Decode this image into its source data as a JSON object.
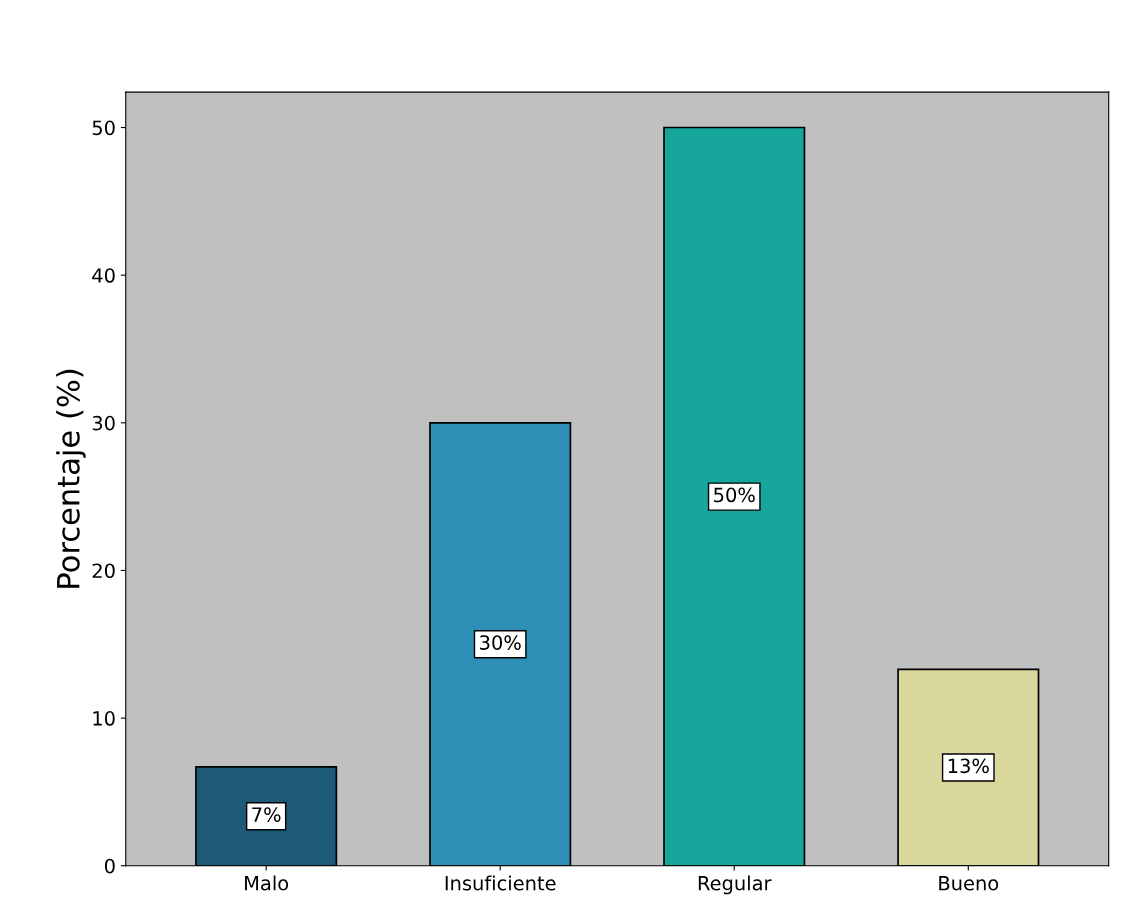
{
  "chart_data": {
    "type": "bar",
    "ylabel": "Porcentaje (%)",
    "categories": [
      "Malo",
      "Insuficiente",
      "Regular",
      "Bueno"
    ],
    "values": [
      6.7,
      30,
      50,
      13.3
    ],
    "value_labels": [
      "7%",
      "30%",
      "50%",
      "13%"
    ],
    "colors": [
      "#1d5a78",
      "#2d8fb5",
      "#16a69b",
      "#d9d79c"
    ],
    "ylim": [
      0,
      52.4
    ],
    "yticks": [
      0,
      10,
      20,
      30,
      40,
      50
    ],
    "grid": false,
    "legend": false
  }
}
